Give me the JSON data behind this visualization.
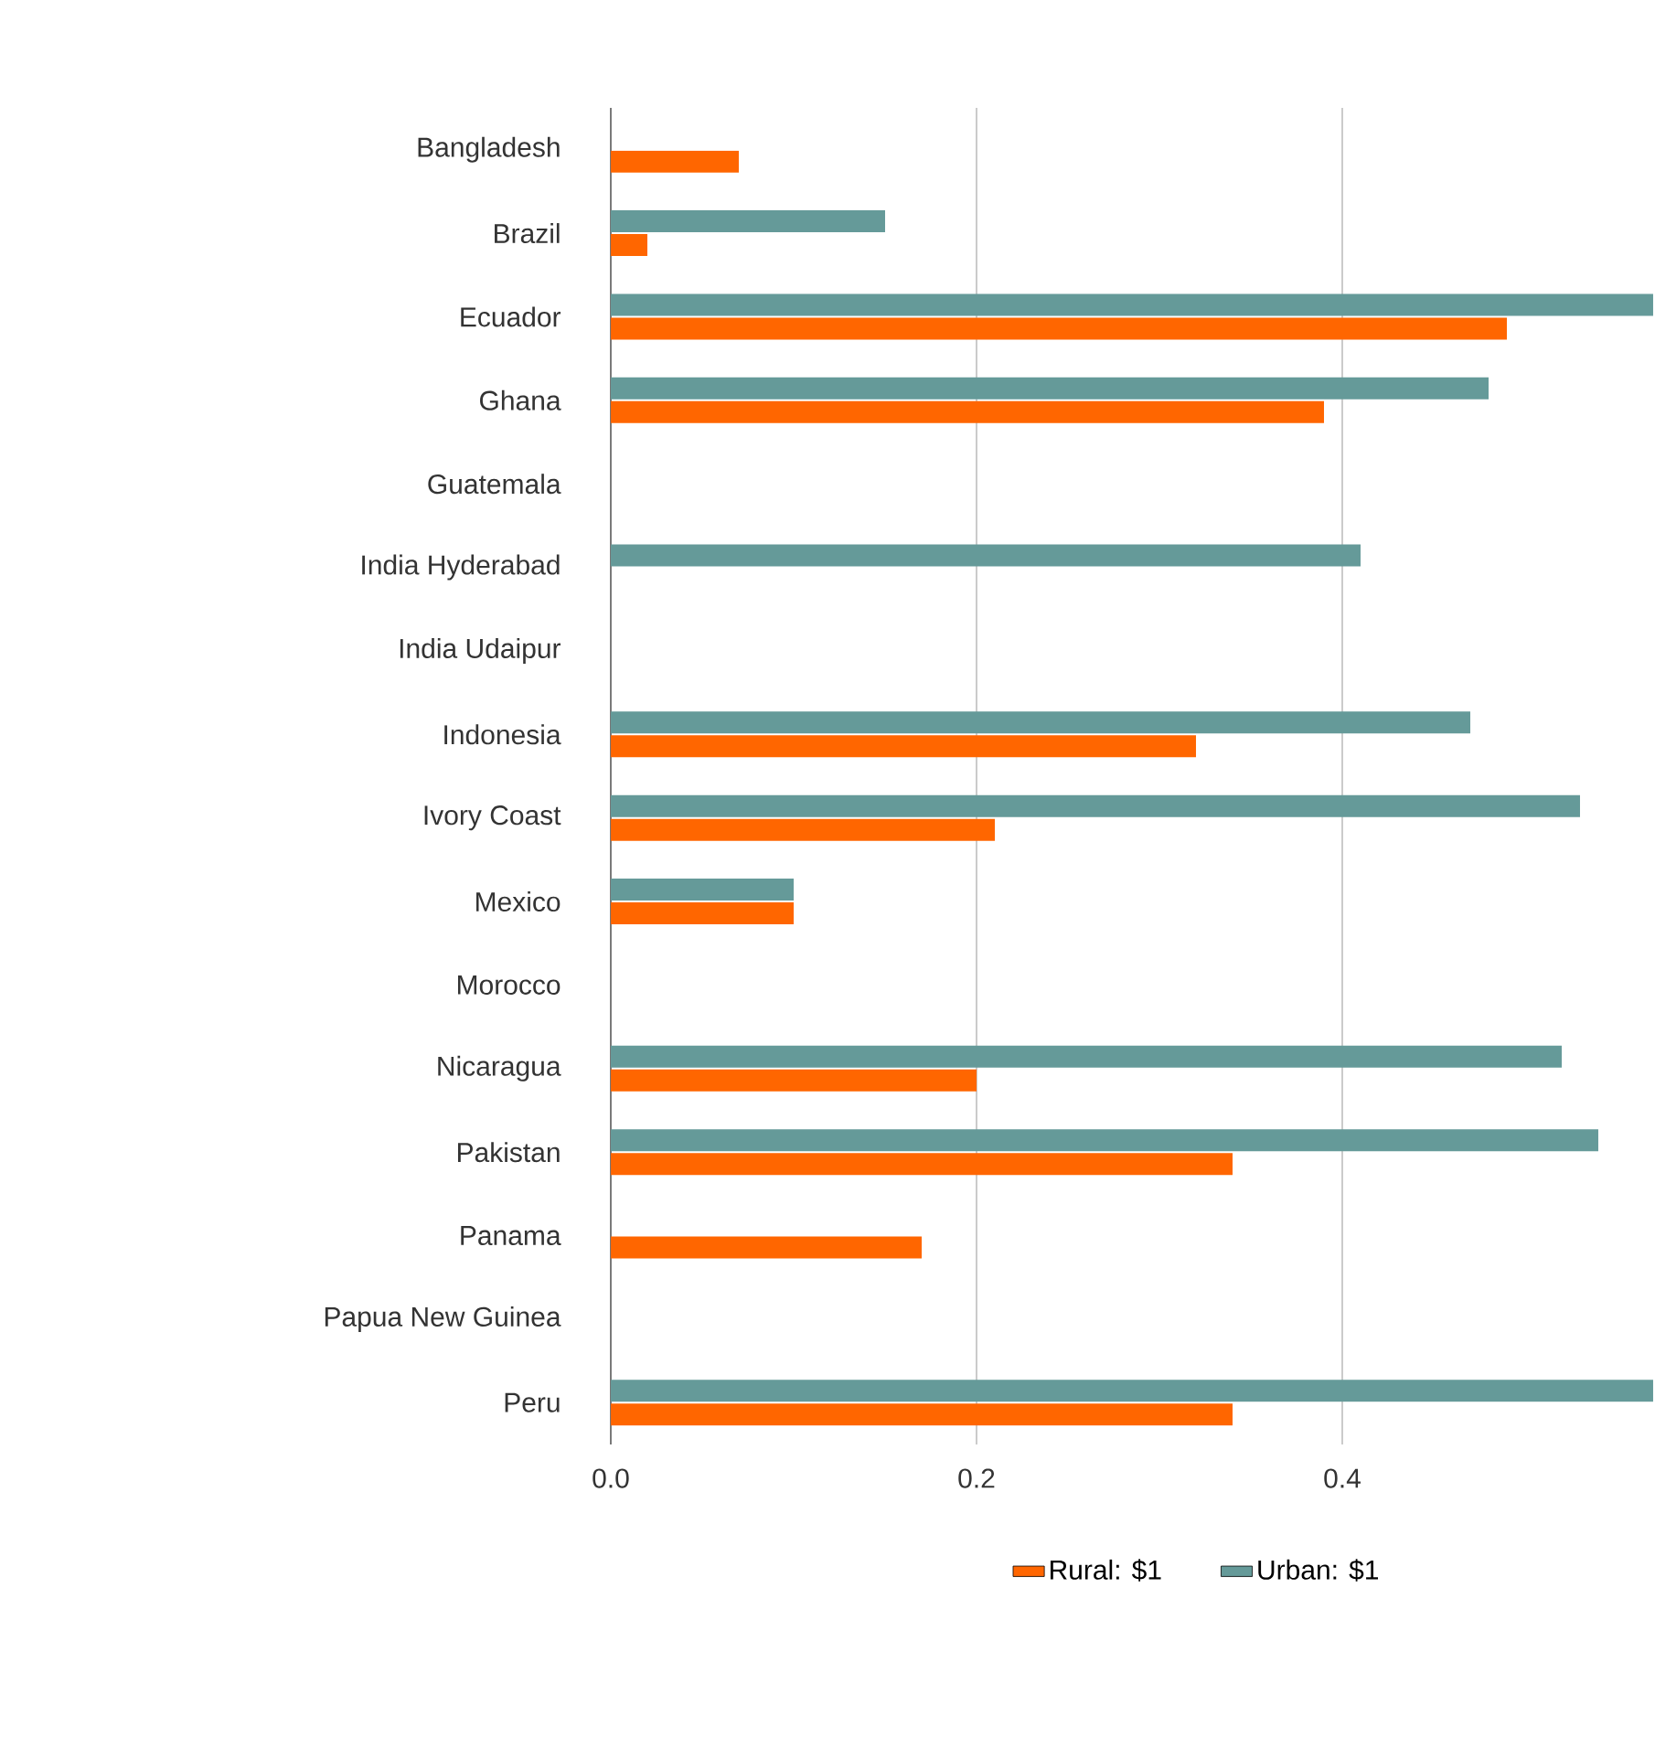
{
  "chart_data": {
    "type": "bar",
    "orientation": "horizontal",
    "categories": [
      "Bangladesh",
      "Brazil",
      "Ecuador",
      "Ghana",
      "Guatemala",
      "India Hyderabad",
      "India Udaipur",
      "Indonesia",
      "Ivory Coast",
      "Mexico",
      "Morocco",
      "Nicaragua",
      "Pakistan",
      "Panama",
      "Papua New Guinea",
      "Peru"
    ],
    "series": [
      {
        "name": "Rural: $1",
        "color": "#ff6600",
        "values": [
          0.07,
          0.02,
          0.49,
          0.39,
          null,
          null,
          null,
          0.32,
          0.21,
          0.1,
          null,
          0.2,
          0.34,
          0.17,
          null,
          0.34
        ]
      },
      {
        "name": "Urban: $1",
        "color": "#659a99",
        "values": [
          null,
          0.15,
          0.57,
          0.48,
          null,
          0.41,
          null,
          0.47,
          0.53,
          0.1,
          null,
          0.52,
          0.54,
          null,
          null,
          0.57
        ]
      }
    ],
    "xlim": [
      0,
      0.57
    ],
    "xticks": [
      {
        "value": 0,
        "label": "0.0"
      },
      0.2,
      0.4
    ],
    "grid": "x",
    "legend": "bottom"
  }
}
